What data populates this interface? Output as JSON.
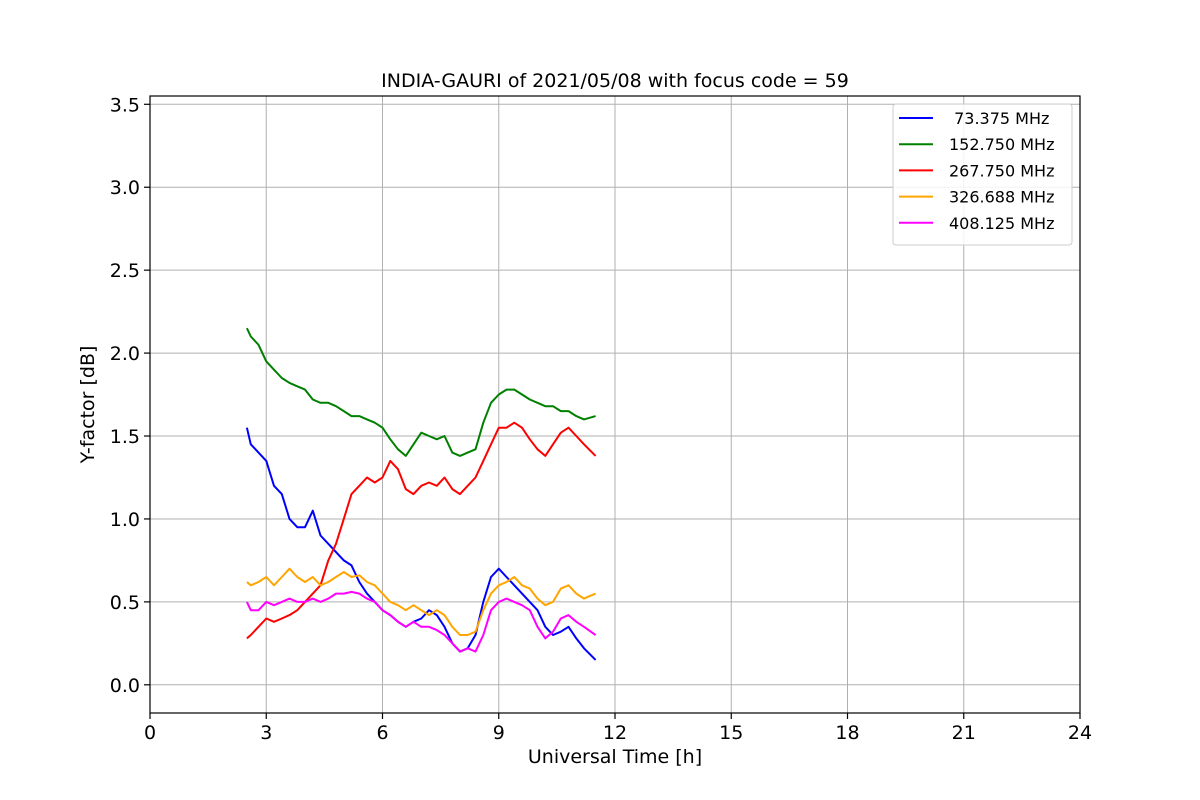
{
  "chart_data": {
    "type": "line",
    "title": "INDIA-GAURI of 2021/05/08 with focus code = 59",
    "xlabel": "Universal Time [h]",
    "ylabel": "Y-factor [dB]",
    "xlim": [
      0,
      24
    ],
    "ylim": [
      -0.17,
      3.55
    ],
    "x_ticks": [
      0,
      3,
      6,
      9,
      12,
      15,
      18,
      21,
      24
    ],
    "x_tick_labels": [
      "0",
      "3",
      "6",
      "9",
      "12",
      "15",
      "18",
      "21",
      "24"
    ],
    "y_ticks": [
      0.0,
      0.5,
      1.0,
      1.5,
      2.0,
      2.5,
      3.0,
      3.5
    ],
    "y_tick_labels": [
      "0.0",
      "0.5",
      "1.0",
      "1.5",
      "2.0",
      "2.5",
      "3.0",
      "3.5"
    ],
    "grid": true,
    "legend_position": "top-right",
    "series": [
      {
        "name": " 73.375 MHz",
        "color": "#0000ff",
        "x": [
          2.5,
          2.6,
          2.8,
          3.0,
          3.2,
          3.4,
          3.6,
          3.8,
          4.0,
          4.2,
          4.4,
          4.6,
          4.8,
          5.0,
          5.2,
          5.4,
          5.6,
          5.8,
          6.0,
          6.2,
          6.4,
          6.6,
          6.8,
          7.0,
          7.2,
          7.4,
          7.6,
          7.8,
          8.0,
          8.2,
          8.4,
          8.6,
          8.8,
          9.0,
          9.2,
          9.4,
          9.6,
          9.8,
          10.0,
          10.2,
          10.4,
          10.6,
          10.8,
          11.0,
          11.2,
          11.5
        ],
        "y": [
          1.55,
          1.45,
          1.4,
          1.35,
          1.2,
          1.15,
          1.0,
          0.95,
          0.95,
          1.05,
          0.9,
          0.85,
          0.8,
          0.75,
          0.72,
          0.62,
          0.55,
          0.5,
          0.45,
          0.42,
          0.38,
          0.35,
          0.38,
          0.4,
          0.45,
          0.42,
          0.35,
          0.25,
          0.2,
          0.22,
          0.3,
          0.5,
          0.65,
          0.7,
          0.65,
          0.6,
          0.55,
          0.5,
          0.45,
          0.35,
          0.3,
          0.32,
          0.35,
          0.28,
          0.22,
          0.15
        ]
      },
      {
        "name": "152.750 MHz",
        "color": "#008000",
        "x": [
          2.5,
          2.6,
          2.8,
          3.0,
          3.2,
          3.4,
          3.6,
          3.8,
          4.0,
          4.2,
          4.4,
          4.6,
          4.8,
          5.0,
          5.2,
          5.4,
          5.6,
          5.8,
          6.0,
          6.2,
          6.4,
          6.6,
          6.8,
          7.0,
          7.2,
          7.4,
          7.6,
          7.8,
          8.0,
          8.2,
          8.4,
          8.6,
          8.8,
          9.0,
          9.2,
          9.4,
          9.6,
          9.8,
          10.0,
          10.2,
          10.4,
          10.6,
          10.8,
          11.0,
          11.2,
          11.5
        ],
        "y": [
          2.15,
          2.1,
          2.05,
          1.95,
          1.9,
          1.85,
          1.82,
          1.8,
          1.78,
          1.72,
          1.7,
          1.7,
          1.68,
          1.65,
          1.62,
          1.62,
          1.6,
          1.58,
          1.55,
          1.48,
          1.42,
          1.38,
          1.45,
          1.52,
          1.5,
          1.48,
          1.5,
          1.4,
          1.38,
          1.4,
          1.42,
          1.58,
          1.7,
          1.75,
          1.78,
          1.78,
          1.75,
          1.72,
          1.7,
          1.68,
          1.68,
          1.65,
          1.65,
          1.62,
          1.6,
          1.62
        ]
      },
      {
        "name": "267.750 MHz",
        "color": "#ff0000",
        "x": [
          2.5,
          2.6,
          2.8,
          3.0,
          3.2,
          3.4,
          3.6,
          3.8,
          4.0,
          4.2,
          4.4,
          4.6,
          4.8,
          5.0,
          5.2,
          5.4,
          5.6,
          5.8,
          6.0,
          6.2,
          6.4,
          6.6,
          6.8,
          7.0,
          7.2,
          7.4,
          7.6,
          7.8,
          8.0,
          8.2,
          8.4,
          8.6,
          8.8,
          9.0,
          9.2,
          9.4,
          9.6,
          9.8,
          10.0,
          10.2,
          10.4,
          10.6,
          10.8,
          11.0,
          11.2,
          11.5
        ],
        "y": [
          0.28,
          0.3,
          0.35,
          0.4,
          0.38,
          0.4,
          0.42,
          0.45,
          0.5,
          0.55,
          0.6,
          0.75,
          0.85,
          1.0,
          1.15,
          1.2,
          1.25,
          1.22,
          1.25,
          1.35,
          1.3,
          1.18,
          1.15,
          1.2,
          1.22,
          1.2,
          1.25,
          1.18,
          1.15,
          1.2,
          1.25,
          1.35,
          1.45,
          1.55,
          1.55,
          1.58,
          1.55,
          1.48,
          1.42,
          1.38,
          1.45,
          1.52,
          1.55,
          1.5,
          1.45,
          1.38
        ]
      },
      {
        "name": "326.688 MHz",
        "color": "#ffa500",
        "x": [
          2.5,
          2.6,
          2.8,
          3.0,
          3.2,
          3.4,
          3.6,
          3.8,
          4.0,
          4.2,
          4.4,
          4.6,
          4.8,
          5.0,
          5.2,
          5.4,
          5.6,
          5.8,
          6.0,
          6.2,
          6.4,
          6.6,
          6.8,
          7.0,
          7.2,
          7.4,
          7.6,
          7.8,
          8.0,
          8.2,
          8.4,
          8.6,
          8.8,
          9.0,
          9.2,
          9.4,
          9.6,
          9.8,
          10.0,
          10.2,
          10.4,
          10.6,
          10.8,
          11.0,
          11.2,
          11.5
        ],
        "y": [
          0.62,
          0.6,
          0.62,
          0.65,
          0.6,
          0.65,
          0.7,
          0.65,
          0.62,
          0.65,
          0.6,
          0.62,
          0.65,
          0.68,
          0.65,
          0.66,
          0.62,
          0.6,
          0.55,
          0.5,
          0.48,
          0.45,
          0.48,
          0.45,
          0.42,
          0.45,
          0.42,
          0.35,
          0.3,
          0.3,
          0.32,
          0.45,
          0.55,
          0.6,
          0.62,
          0.65,
          0.6,
          0.58,
          0.52,
          0.48,
          0.5,
          0.58,
          0.6,
          0.55,
          0.52,
          0.55
        ]
      },
      {
        "name": "408.125 MHz",
        "color": "#ff00ff",
        "x": [
          2.5,
          2.6,
          2.8,
          3.0,
          3.2,
          3.4,
          3.6,
          3.8,
          4.0,
          4.2,
          4.4,
          4.6,
          4.8,
          5.0,
          5.2,
          5.4,
          5.6,
          5.8,
          6.0,
          6.2,
          6.4,
          6.6,
          6.8,
          7.0,
          7.2,
          7.4,
          7.6,
          7.8,
          8.0,
          8.2,
          8.4,
          8.6,
          8.8,
          9.0,
          9.2,
          9.4,
          9.6,
          9.8,
          10.0,
          10.2,
          10.4,
          10.6,
          10.8,
          11.0,
          11.2,
          11.5
        ],
        "y": [
          0.5,
          0.45,
          0.45,
          0.5,
          0.48,
          0.5,
          0.52,
          0.5,
          0.5,
          0.52,
          0.5,
          0.52,
          0.55,
          0.55,
          0.56,
          0.55,
          0.52,
          0.5,
          0.45,
          0.42,
          0.38,
          0.35,
          0.38,
          0.35,
          0.35,
          0.33,
          0.3,
          0.25,
          0.2,
          0.22,
          0.2,
          0.3,
          0.45,
          0.5,
          0.52,
          0.5,
          0.48,
          0.45,
          0.35,
          0.28,
          0.32,
          0.4,
          0.42,
          0.38,
          0.35,
          0.3
        ]
      }
    ]
  }
}
